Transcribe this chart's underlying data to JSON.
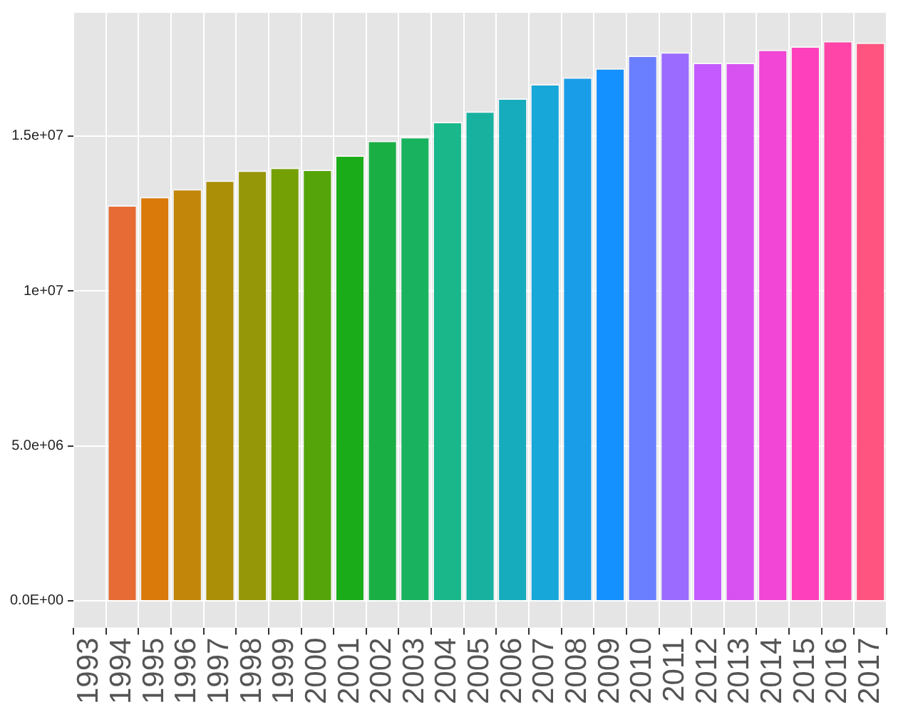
{
  "chart_data": {
    "type": "bar",
    "categories": [
      "1993",
      "1994",
      "1995",
      "1996",
      "1997",
      "1998",
      "1999",
      "2000",
      "2001",
      "2002",
      "2003",
      "2004",
      "2005",
      "2006",
      "2007",
      "2008",
      "2009",
      "2010",
      "2011",
      "2012",
      "2013",
      "2014",
      "2015",
      "2016",
      "2017"
    ],
    "values": [
      null,
      12770000,
      13040000,
      13290000,
      13570000,
      13890000,
      13980000,
      13920000,
      14380000,
      14850000,
      14970000,
      15460000,
      15800000,
      16220000,
      16680000,
      16900000,
      17190000,
      17600000,
      17710000,
      17370000,
      17370000,
      17790000,
      17900000,
      18070000,
      18020000
    ],
    "colors": [
      null,
      "#e66b35",
      "#d97a0a",
      "#c2870a",
      "#aa8f07",
      "#959708",
      "#74a006",
      "#55a50a",
      "#1aac19",
      "#1aaf44",
      "#19b25e",
      "#19b78a",
      "#18b1a0",
      "#16acbd",
      "#17a7d8",
      "#199de8",
      "#1590ff",
      "#6a7fff",
      "#9b6bff",
      "#c45aff",
      "#d752f0",
      "#f146d6",
      "#ff40bd",
      "#ff45a7",
      "#ff5480"
    ],
    "ylim": [
      -865000,
      18980000
    ],
    "yticks": [
      {
        "value": 0,
        "label": "0.0E+00"
      },
      {
        "value": 5000000,
        "label": "5.0e+06"
      },
      {
        "value": 10000000,
        "label": "1e+07"
      },
      {
        "value": 15000000,
        "label": "1.5e+07"
      }
    ],
    "grid": true
  }
}
